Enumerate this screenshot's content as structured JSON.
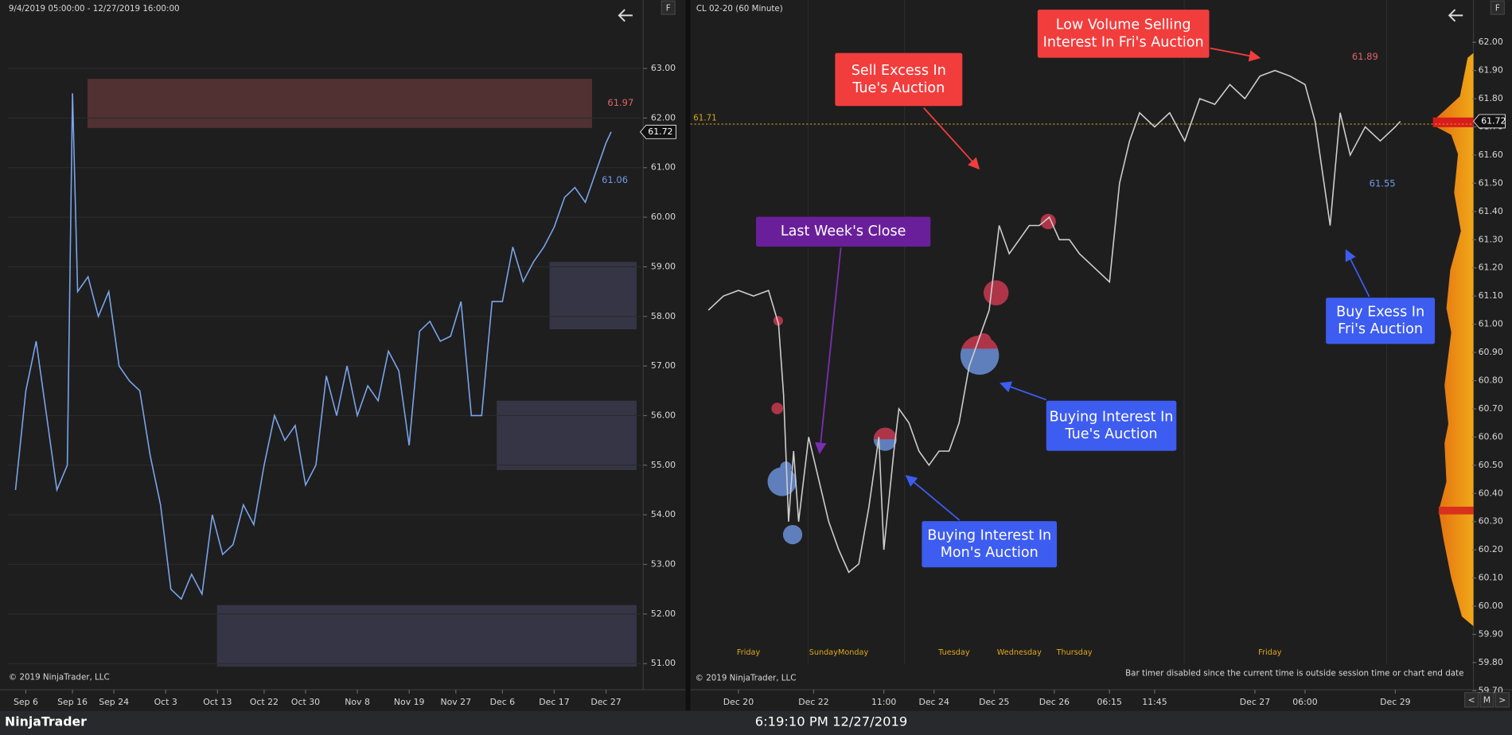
{
  "left_chart": {
    "header": "9/4/2019 05:00:00 - 12/27/2019 16:00:00",
    "copyright": "© 2019 NinjaTrader, LLC",
    "button": "F",
    "xlim": [
      -1.5,
      120.8
    ],
    "ylim": [
      50.55,
      64.38
    ],
    "xticks": [
      {
        "value": 2,
        "label": "Sep 6"
      },
      {
        "value": 11,
        "label": "Sep 16"
      },
      {
        "value": 19,
        "label": "Sep 24"
      },
      {
        "value": 29,
        "label": "Oct 3"
      },
      {
        "value": 39,
        "label": "Oct 13"
      },
      {
        "value": 48,
        "label": "Oct 22"
      },
      {
        "value": 56,
        "label": "Oct 30"
      },
      {
        "value": 66,
        "label": "Nov 8"
      },
      {
        "value": 76,
        "label": "Nov 19"
      },
      {
        "value": 85,
        "label": "Nov 27"
      },
      {
        "value": 94,
        "label": "Dec 6"
      },
      {
        "value": 104,
        "label": "Dec 17"
      },
      {
        "value": 114,
        "label": "Dec 27"
      }
    ],
    "yticks": [
      {
        "value": 51,
        "label": "51.00"
      },
      {
        "value": 52,
        "label": "52.00"
      },
      {
        "value": 53,
        "label": "53.00"
      },
      {
        "value": 54,
        "label": "54.00"
      },
      {
        "value": 55,
        "label": "55.00"
      },
      {
        "value": 56,
        "label": "56.00"
      },
      {
        "value": 57,
        "label": "57.00"
      },
      {
        "value": 58,
        "label": "58.00"
      },
      {
        "value": 59,
        "label": "59.00"
      },
      {
        "value": 60,
        "label": "60.00"
      },
      {
        "value": 61,
        "label": "61.00"
      },
      {
        "value": 62,
        "label": "62.00"
      },
      {
        "value": 63,
        "label": "63.00"
      }
    ],
    "series": {
      "color": "#7aa5ee",
      "x": [
        0,
        2,
        4,
        6,
        8,
        10,
        11,
        12,
        14,
        16,
        18,
        20,
        22,
        24,
        26,
        28,
        30,
        32,
        34,
        36,
        38,
        40,
        42,
        44,
        46,
        48,
        50,
        52,
        54,
        56,
        58,
        60,
        62,
        64,
        66,
        68,
        70,
        72,
        74,
        76,
        78,
        80,
        82,
        84,
        86,
        88,
        90,
        92,
        94,
        96,
        98,
        100,
        102,
        104,
        106,
        108,
        110,
        112,
        114,
        115
      ],
      "values": [
        54.5,
        56.5,
        57.5,
        56.0,
        54.5,
        55.0,
        62.5,
        58.5,
        58.8,
        58.0,
        58.5,
        57.0,
        56.7,
        56.5,
        55.2,
        54.2,
        52.5,
        52.3,
        52.8,
        52.4,
        54.0,
        53.2,
        53.4,
        54.2,
        53.8,
        55.0,
        56.0,
        55.5,
        55.8,
        54.6,
        55.0,
        56.8,
        56.0,
        57.0,
        56.0,
        56.6,
        56.3,
        57.3,
        56.9,
        55.4,
        57.7,
        57.9,
        57.5,
        57.6,
        58.3,
        56.0,
        56.0,
        58.3,
        58.3,
        59.4,
        58.7,
        59.1,
        59.4,
        59.8,
        60.4,
        60.6,
        60.3,
        60.9,
        61.5,
        61.72
      ]
    },
    "zones": [
      {
        "x": [
          13.9,
          111.3
        ],
        "y": [
          61.8,
          62.79
        ],
        "color": "#5b3535"
      },
      {
        "x": [
          103.1,
          119.9
        ],
        "y": [
          57.74,
          59.1
        ],
        "color": "#3a3a4e"
      },
      {
        "x": [
          92.9,
          119.9
        ],
        "y": [
          54.9,
          56.3
        ],
        "color": "#3a3a4e"
      },
      {
        "x": [
          38.9,
          119.9
        ],
        "y": [
          50.94,
          52.18
        ],
        "color": "#3a3a4e"
      }
    ],
    "price_labels": [
      {
        "value": 61.97,
        "color": "#e0646a"
      },
      {
        "value": 61.06,
        "color": "#6f9be8"
      }
    ],
    "last_price": 61.72
  },
  "right_chart": {
    "header": "CL 02-20 (60 Minute)",
    "copyright": "© 2019 NinjaTrader, LLC",
    "timer_note": "Bar timer disabled since the current time is outside session time or chart end date",
    "button": "F",
    "xlim": [
      0,
      155
    ],
    "ylim": [
      59.69,
      62.15
    ],
    "xticks": [
      {
        "value": 9,
        "label": "Dec 20"
      },
      {
        "value": 24,
        "label": "Dec 22"
      },
      {
        "value": 38,
        "label": "11:00"
      },
      {
        "value": 48,
        "label": "Dec 24"
      },
      {
        "value": 60,
        "label": "Dec 25"
      },
      {
        "value": 72,
        "label": "Dec 26"
      },
      {
        "value": 83,
        "label": "06:15"
      },
      {
        "value": 92,
        "label": "11:45"
      },
      {
        "value": 112,
        "label": "Dec 27"
      },
      {
        "value": 122,
        "label": "06:00"
      },
      {
        "value": 140,
        "label": "Dec 29"
      }
    ],
    "yticks": [
      {
        "value": 59.7,
        "label": "59.70"
      },
      {
        "value": 59.8,
        "label": "59.80"
      },
      {
        "value": 59.9,
        "label": "59.90"
      },
      {
        "value": 60.0,
        "label": "60.00"
      },
      {
        "value": 60.1,
        "label": "60.10"
      },
      {
        "value": 60.2,
        "label": "60.20"
      },
      {
        "value": 60.3,
        "label": "60.30"
      },
      {
        "value": 60.4,
        "label": "60.40"
      },
      {
        "value": 60.5,
        "label": "60.50"
      },
      {
        "value": 60.6,
        "label": "60.60"
      },
      {
        "value": 60.7,
        "label": "60.70"
      },
      {
        "value": 60.8,
        "label": "60.80"
      },
      {
        "value": 60.9,
        "label": "60.90"
      },
      {
        "value": 61.0,
        "label": "61.00"
      },
      {
        "value": 61.1,
        "label": "61.10"
      },
      {
        "value": 61.2,
        "label": "61.20"
      },
      {
        "value": 61.3,
        "label": "61.30"
      },
      {
        "value": 61.4,
        "label": "61.40"
      },
      {
        "value": 61.5,
        "label": "61.50"
      },
      {
        "value": 61.6,
        "label": "61.60"
      },
      {
        "value": 61.7,
        "label": "61.70"
      },
      {
        "value": 61.8,
        "label": "61.80"
      },
      {
        "value": 61.9,
        "label": "61.90"
      },
      {
        "value": 62.0,
        "label": "62.00"
      }
    ],
    "series": {
      "color": "#cfcfcf",
      "x": [
        3,
        6,
        9,
        12,
        15,
        17,
        18,
        19,
        20,
        21,
        23,
        25,
        27,
        29,
        31,
        33,
        35,
        37,
        38,
        40,
        41,
        43,
        45,
        47,
        49,
        51,
        53,
        55,
        57,
        59,
        61,
        63,
        65,
        67,
        69,
        71,
        73,
        75,
        77,
        80,
        83,
        85,
        87,
        89,
        92,
        95,
        98,
        101,
        104,
        107,
        110,
        113,
        116,
        119,
        122,
        124,
        127,
        129,
        131,
        134,
        137,
        140,
        141
      ],
      "values": [
        61.05,
        61.1,
        61.12,
        61.1,
        61.12,
        61.0,
        60.75,
        60.3,
        60.55,
        60.3,
        60.6,
        60.45,
        60.3,
        60.2,
        60.12,
        60.15,
        60.35,
        60.6,
        60.2,
        60.55,
        60.7,
        60.65,
        60.55,
        60.5,
        60.55,
        60.55,
        60.65,
        60.85,
        60.95,
        61.05,
        61.35,
        61.25,
        61.3,
        61.35,
        61.35,
        61.38,
        61.3,
        61.3,
        61.25,
        61.2,
        61.15,
        61.5,
        61.65,
        61.75,
        61.7,
        61.75,
        61.65,
        61.8,
        61.78,
        61.85,
        61.8,
        61.88,
        61.9,
        61.88,
        61.85,
        61.72,
        61.35,
        61.75,
        61.6,
        61.7,
        61.65,
        61.7,
        61.72
      ]
    },
    "day_labels": [
      {
        "x": 11,
        "label": "Friday"
      },
      {
        "x": 29,
        "label": "SundayMonday"
      },
      {
        "x": 52,
        "label": "Tuesday"
      },
      {
        "x": 65,
        "label": "Wednesday"
      },
      {
        "x": 76,
        "label": "Thursday"
      },
      {
        "x": 115,
        "label": "Friday"
      }
    ],
    "reference_line": {
      "value": 61.71,
      "color": "#d6a419"
    },
    "price_labels": [
      {
        "value": 61.89,
        "color": "#e0646a"
      },
      {
        "value": 61.55,
        "color": "#6f9be8"
      }
    ],
    "last_price": 61.72,
    "annotations": [
      {
        "lines": [
          "Low Volume Selling",
          "Interest In Fri's Auction"
        ],
        "color": "#f23d3d"
      },
      {
        "lines": [
          "Sell Excess In",
          "Tue's Auction"
        ],
        "color": "#f23d3d"
      },
      {
        "lines": [
          "Last Week's Close"
        ],
        "color": "#6a1f9a"
      },
      {
        "lines": [
          "Buying Interest In",
          "Tue's Auction"
        ],
        "color": "#3d5cf0"
      },
      {
        "lines": [
          "Buying Interest In",
          "Mon's Auction"
        ],
        "color": "#3d5cf0"
      },
      {
        "lines": [
          "Buy Exess In",
          "Fri's Auction"
        ],
        "color": "#3d5cf0"
      }
    ],
    "nav_buttons": [
      "<",
      "M",
      ">"
    ]
  },
  "status_bar": {
    "app": "NinjaTrader",
    "clock": "6:19:10 PM 12/27/2019"
  }
}
